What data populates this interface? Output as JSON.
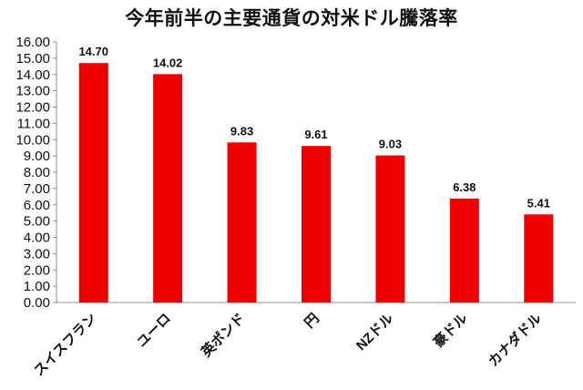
{
  "chart_data": {
    "type": "bar",
    "title": "今年前半の主要通貨の対米ドル騰落率",
    "categories": [
      "スイスフラン",
      "ユーロ",
      "英ポンド",
      "円",
      "NZドル",
      "豪ドル",
      "カナダドル"
    ],
    "values": [
      14.7,
      14.02,
      9.83,
      9.61,
      9.03,
      6.38,
      5.41
    ],
    "data_labels": [
      "14.70",
      "14.02",
      "9.83",
      "9.61",
      "9.03",
      "6.38",
      "5.41"
    ],
    "y_ticks": [
      "0.00",
      "1.00",
      "2.00",
      "3.00",
      "4.00",
      "5.00",
      "6.00",
      "7.00",
      "8.00",
      "9.00",
      "10.00",
      "11.00",
      "12.00",
      "13.00",
      "14.00",
      "15.00",
      "16.00"
    ],
    "ylim": [
      0,
      16
    ],
    "xlabel": "",
    "ylabel": "",
    "grid": false,
    "bar_color": "#ee0000"
  }
}
